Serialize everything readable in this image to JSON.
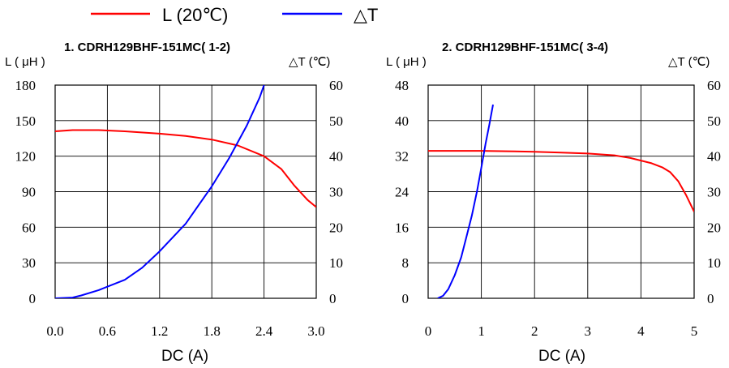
{
  "legend": {
    "l_label": "L (20℃)",
    "dt_label": "△T",
    "l_color": "#ff0000",
    "dt_color": "#0000ff"
  },
  "chart_data": [
    {
      "type": "line",
      "title": "1. CDRH129BHF-151MC( 1-2)",
      "xlabel": "DC (A)",
      "ylabel_left": "L ( μH )",
      "ylabel_right": "△T (℃)",
      "xlim": [
        0,
        3.0
      ],
      "ylim_left": [
        0,
        180
      ],
      "ylim_right": [
        0,
        60
      ],
      "xticks": [
        "0.0",
        "0.6",
        "1.2",
        "1.8",
        "2.4",
        "3.0"
      ],
      "yticks_left": [
        "0",
        "30",
        "60",
        "90",
        "120",
        "150",
        "180"
      ],
      "yticks_right": [
        "0",
        "10",
        "20",
        "30",
        "40",
        "50",
        "60"
      ],
      "grid": true,
      "series": [
        {
          "name": "L (20℃)",
          "axis": "left",
          "color": "#ff0000",
          "x": [
            0.0,
            0.2,
            0.5,
            0.8,
            1.2,
            1.5,
            1.8,
            2.1,
            2.4,
            2.6,
            2.75,
            2.9,
            3.0
          ],
          "y": [
            141,
            142,
            142,
            141,
            139,
            137,
            134,
            129,
            120,
            109,
            95,
            83,
            77
          ]
        },
        {
          "name": "△T",
          "axis": "right",
          "color": "#0000ff",
          "x": [
            0.0,
            0.2,
            0.3,
            0.5,
            0.8,
            1.0,
            1.2,
            1.5,
            1.8,
            2.0,
            2.2,
            2.35,
            2.4
          ],
          "y": [
            0,
            0.2,
            0.8,
            2.3,
            5.2,
            8.6,
            13.2,
            21,
            31.5,
            39.5,
            48.5,
            56.5,
            60
          ]
        }
      ]
    },
    {
      "type": "line",
      "title": "2. CDRH129BHF-151MC( 3-4)",
      "xlabel": "DC (A)",
      "ylabel_left": "L ( μH )",
      "ylabel_right": "△T (℃)",
      "xlim": [
        0,
        5
      ],
      "ylim_left": [
        0,
        48
      ],
      "ylim_right": [
        0,
        60
      ],
      "xticks": [
        "0",
        "1",
        "2",
        "3",
        "4",
        "5"
      ],
      "yticks_left": [
        "0",
        "8",
        "16",
        "24",
        "32",
        "40",
        "48"
      ],
      "yticks_right": [
        "0",
        "10",
        "20",
        "30",
        "40",
        "50",
        "60"
      ],
      "grid": true,
      "series": [
        {
          "name": "L (20℃)",
          "axis": "left",
          "color": "#ff0000",
          "x": [
            0.0,
            1.0,
            1.5,
            2.0,
            2.5,
            3.0,
            3.5,
            3.8,
            4.0,
            4.2,
            4.4,
            4.55,
            4.7,
            4.85,
            5.0
          ],
          "y": [
            33.2,
            33.2,
            33.1,
            33.0,
            32.8,
            32.6,
            32.2,
            31.6,
            31.0,
            30.4,
            29.5,
            28.4,
            26.4,
            23.2,
            19.5
          ]
        },
        {
          "name": "△T",
          "axis": "right",
          "color": "#0000ff",
          "x": [
            0.18,
            0.28,
            0.38,
            0.5,
            0.62,
            0.72,
            0.82,
            0.92,
            1.0,
            1.08,
            1.15,
            1.22
          ],
          "y": [
            0,
            0.7,
            2.6,
            6.5,
            11.5,
            17.3,
            23.2,
            30.3,
            36.8,
            43.5,
            48.8,
            54.5
          ]
        }
      ]
    }
  ]
}
